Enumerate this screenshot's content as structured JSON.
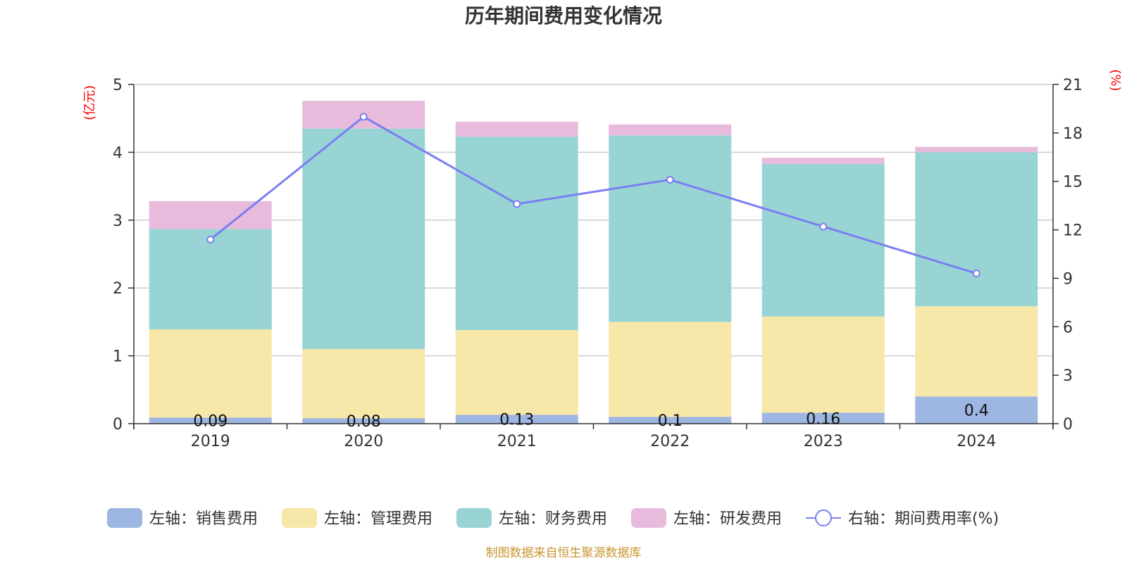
{
  "chart_data": {
    "type": "bar",
    "title": "历年期间费用变化情况",
    "categories": [
      "2019",
      "2020",
      "2021",
      "2022",
      "2023",
      "2024"
    ],
    "left_axis": {
      "unit": "(亿元)",
      "range": [
        0,
        5
      ],
      "ticks": [
        "0",
        "1",
        "2",
        "3",
        "4",
        "5"
      ]
    },
    "right_axis": {
      "unit": "(%)",
      "range": [
        0,
        21
      ],
      "ticks": [
        "0",
        "3",
        "6",
        "9",
        "12",
        "15",
        "18",
        "21"
      ]
    },
    "stacked": true,
    "series": [
      {
        "name": "左轴：销售费用",
        "color": "#9db7e2",
        "values": [
          0.09,
          0.08,
          0.13,
          0.1,
          0.16,
          0.4
        ],
        "labels": [
          "0.09",
          "0.08",
          "0.13",
          "0.1",
          "0.16",
          "0.4"
        ]
      },
      {
        "name": "左轴：管理费用",
        "color": "#f7e7a8",
        "values": [
          1.3,
          1.02,
          1.25,
          1.4,
          1.42,
          1.33
        ]
      },
      {
        "name": "左轴：财务费用",
        "color": "#98d4d4",
        "values": [
          1.48,
          3.25,
          2.85,
          2.75,
          2.25,
          2.27
        ]
      },
      {
        "name": "左轴：研发费用",
        "color": "#e8bbdc",
        "values": [
          0.41,
          0.41,
          0.22,
          0.16,
          0.09,
          0.08
        ]
      }
    ],
    "line": {
      "name": "右轴：期间费用率(%)",
      "color": "#7b7ef0",
      "values": [
        11.4,
        19.0,
        13.6,
        15.1,
        12.2,
        9.3
      ]
    },
    "grid": true,
    "legend_position": "bottom"
  },
  "footer": "制图数据来自恒生聚源数据库"
}
